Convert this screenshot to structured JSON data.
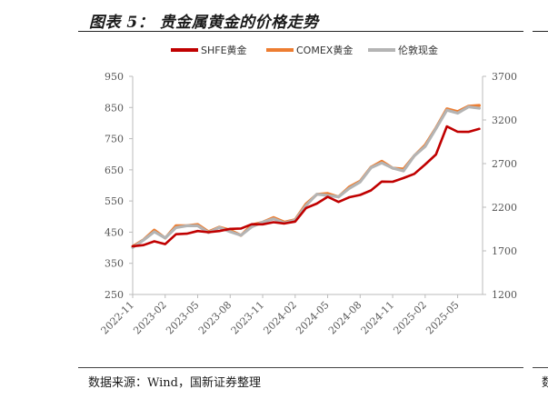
{
  "title": "图表 5：  贵金属黄金的价格走势",
  "source": "数据来源：Wind，国新证券整理",
  "source_right": "数",
  "colors": {
    "shfe": "#c00000",
    "comex": "#ed7d31",
    "london": "#b4b4b4"
  },
  "chart_data": {
    "type": "line",
    "title": "",
    "x_ticks": [
      "2022-11",
      "2023-02",
      "2023-05",
      "2023-08",
      "2023-11",
      "2024-02",
      "2024-05",
      "2024-08",
      "2024-11",
      "2025-02",
      "2025-05"
    ],
    "y_left_ticks": [
      "950",
      "850",
      "750",
      "650",
      "550",
      "450",
      "350",
      "250"
    ],
    "y_right_ticks": [
      "3700",
      "3200",
      "2700",
      "2200",
      "1700",
      "1200"
    ],
    "y_left_lim": [
      250,
      950
    ],
    "y_right_lim": [
      1200,
      3700
    ],
    "legend_position": "top",
    "grid": false,
    "series": [
      {
        "name": "SHFE黄金",
        "axis": "left",
        "x": [
          "2022-11",
          "2022-12",
          "2023-01",
          "2023-02",
          "2023-03",
          "2023-04",
          "2023-05",
          "2023-06",
          "2023-07",
          "2023-08",
          "2023-09",
          "2023-10",
          "2023-11",
          "2023-12",
          "2024-01",
          "2024-02",
          "2024-03",
          "2024-04",
          "2024-05",
          "2024-06",
          "2024-07",
          "2024-08",
          "2024-09",
          "2024-10",
          "2024-11",
          "2024-12",
          "2025-01",
          "2025-02",
          "2025-03",
          "2025-04",
          "2025-05",
          "2025-06",
          "2025-07"
        ],
        "values": [
          405,
          410,
          418,
          415,
          440,
          448,
          452,
          450,
          455,
          458,
          465,
          472,
          478,
          480,
          478,
          485,
          525,
          545,
          560,
          550,
          560,
          570,
          585,
          610,
          615,
          620,
          640,
          665,
          700,
          790,
          770,
          775,
          778
        ]
      },
      {
        "name": "COMEX黄金",
        "axis": "right",
        "x": [
          "2022-11",
          "2022-12",
          "2023-01",
          "2023-02",
          "2023-03",
          "2023-04",
          "2023-05",
          "2023-06",
          "2023-07",
          "2023-08",
          "2023-09",
          "2023-10",
          "2023-11",
          "2023-12",
          "2024-01",
          "2024-02",
          "2024-03",
          "2024-04",
          "2024-05",
          "2024-06",
          "2024-07",
          "2024-08",
          "2024-09",
          "2024-10",
          "2024-11",
          "2024-12",
          "2025-01",
          "2025-02",
          "2025-03",
          "2025-04",
          "2025-05",
          "2025-06",
          "2025-07"
        ],
        "values": [
          1760,
          1820,
          1940,
          1850,
          1980,
          2000,
          1990,
          1930,
          1965,
          1940,
          1880,
          1990,
          2040,
          2070,
          2040,
          2050,
          2240,
          2350,
          2350,
          2330,
          2420,
          2510,
          2650,
          2730,
          2650,
          2630,
          2800,
          2900,
          3120,
          3320,
          3300,
          3360,
          3360
        ]
      },
      {
        "name": "伦敦现金",
        "axis": "right",
        "x": [
          "2022-11",
          "2022-12",
          "2023-01",
          "2023-02",
          "2023-03",
          "2023-04",
          "2023-05",
          "2023-06",
          "2023-07",
          "2023-08",
          "2023-09",
          "2023-10",
          "2023-11",
          "2023-12",
          "2024-01",
          "2024-02",
          "2024-03",
          "2024-04",
          "2024-05",
          "2024-06",
          "2024-07",
          "2024-08",
          "2024-09",
          "2024-10",
          "2024-11",
          "2024-12",
          "2025-01",
          "2025-02",
          "2025-03",
          "2025-04",
          "2025-05",
          "2025-06",
          "2025-07"
        ],
        "values": [
          1750,
          1810,
          1930,
          1840,
          1970,
          1990,
          1980,
          1920,
          1955,
          1930,
          1870,
          1980,
          2030,
          2060,
          2030,
          2040,
          2230,
          2340,
          2340,
          2320,
          2410,
          2500,
          2640,
          2720,
          2640,
          2620,
          2790,
          2890,
          3110,
          3300,
          3290,
          3340,
          3340
        ]
      }
    ]
  }
}
